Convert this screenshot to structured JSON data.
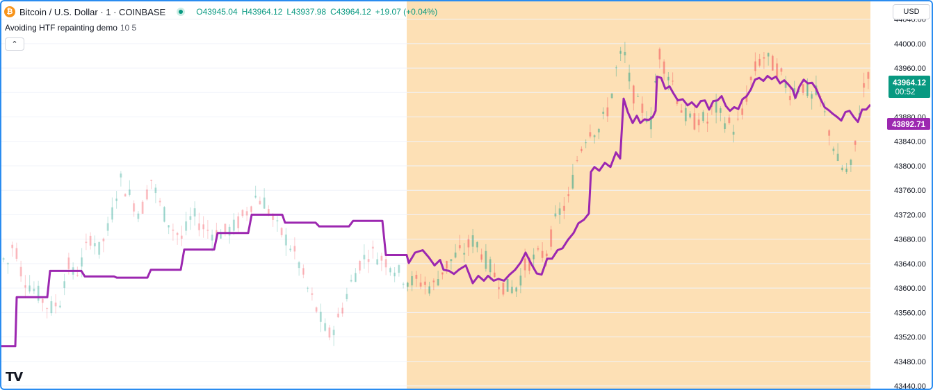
{
  "header": {
    "symbol_title": "Bitcoin / U.S. Dollar · 1 · COINBASE",
    "open": "O43945.04",
    "high": "H43964.12",
    "low": "L43937.98",
    "close": "C43964.12",
    "change": "+19.07 (+0.04%)",
    "currency": "USD",
    "coin_icon": "bitcoin-icon",
    "live_indicator": "market-open-dot"
  },
  "indicator": {
    "name": "Avoiding HTF repainting demo",
    "params": "10 5",
    "collapse_icon": "chevron-up-icon"
  },
  "colors": {
    "up": "#089981",
    "down": "#f23645",
    "line": "#9c27b0",
    "highlight_bg": "#fde0b5",
    "last_price_label": "#089981",
    "line_label": "#9c27b0"
  },
  "chart_data": {
    "type": "candlestick",
    "ylim": [
      43440,
      44060
    ],
    "y_ticks": [
      "44040.00",
      "44000.00",
      "43960.00",
      "43920.00",
      "43880.00",
      "43840.00",
      "43800.00",
      "43760.00",
      "43720.00",
      "43680.00",
      "43640.00",
      "43600.00",
      "43560.00",
      "43520.00",
      "43480.00",
      "43440.00"
    ],
    "last_price_label": "43964.12",
    "countdown_label": "00:52",
    "line_value_label": "43892.71",
    "highlight_start_fraction": 0.47,
    "candle_count": 200,
    "price_path": [
      [
        0,
        43650
      ],
      [
        10,
        43640
      ],
      [
        18,
        43680
      ],
      [
        30,
        43620
      ],
      [
        45,
        43600
      ],
      [
        60,
        43580
      ],
      [
        70,
        43565
      ],
      [
        85,
        43580
      ],
      [
        95,
        43640
      ],
      [
        105,
        43620
      ],
      [
        115,
        43640
      ],
      [
        130,
        43690
      ],
      [
        140,
        43660
      ],
      [
        155,
        43700
      ],
      [
        170,
        43780
      ],
      [
        185,
        43750
      ],
      [
        200,
        43720
      ],
      [
        215,
        43780
      ],
      [
        230,
        43730
      ],
      [
        245,
        43700
      ],
      [
        260,
        43680
      ],
      [
        275,
        43720
      ],
      [
        290,
        43700
      ],
      [
        305,
        43690
      ],
      [
        320,
        43690
      ],
      [
        335,
        43700
      ],
      [
        350,
        43720
      ],
      [
        365,
        43750
      ],
      [
        380,
        43740
      ],
      [
        395,
        43700
      ],
      [
        410,
        43680
      ],
      [
        425,
        43650
      ],
      [
        440,
        43600
      ],
      [
        455,
        43560
      ],
      [
        470,
        43520
      ],
      [
        485,
        43550
      ],
      [
        500,
        43600
      ],
      [
        515,
        43640
      ],
      [
        530,
        43660
      ],
      [
        545,
        43650
      ],
      [
        560,
        43640
      ],
      [
        575,
        43620
      ],
      [
        590,
        43610
      ],
      [
        605,
        43610
      ],
      [
        620,
        43600
      ],
      [
        635,
        43630
      ],
      [
        650,
        43650
      ],
      [
        665,
        43660
      ],
      [
        680,
        43680
      ],
      [
        695,
        43650
      ],
      [
        710,
        43620
      ],
      [
        725,
        43600
      ],
      [
        740,
        43600
      ],
      [
        755,
        43640
      ],
      [
        770,
        43650
      ],
      [
        785,
        43660
      ],
      [
        800,
        43720
      ],
      [
        815,
        43740
      ],
      [
        830,
        43820
      ],
      [
        845,
        43860
      ],
      [
        860,
        43860
      ],
      [
        875,
        43900
      ],
      [
        885,
        43960
      ],
      [
        895,
        43990
      ],
      [
        905,
        43930
      ],
      [
        915,
        43900
      ],
      [
        925,
        43890
      ],
      [
        935,
        43870
      ],
      [
        945,
        43990
      ],
      [
        955,
        43960
      ],
      [
        965,
        43940
      ],
      [
        975,
        43900
      ],
      [
        985,
        43880
      ],
      [
        995,
        43870
      ],
      [
        1005,
        43880
      ],
      [
        1015,
        43870
      ],
      [
        1025,
        43900
      ],
      [
        1035,
        43880
      ],
      [
        1045,
        43870
      ],
      [
        1055,
        43860
      ],
      [
        1065,
        43880
      ],
      [
        1075,
        43930
      ],
      [
        1085,
        43960
      ],
      [
        1095,
        43980
      ],
      [
        1105,
        43970
      ],
      [
        1115,
        43960
      ],
      [
        1125,
        43940
      ],
      [
        1135,
        43920
      ],
      [
        1145,
        43930
      ],
      [
        1155,
        43930
      ],
      [
        1165,
        43910
      ],
      [
        1175,
        43920
      ],
      [
        1185,
        43880
      ],
      [
        1195,
        43840
      ],
      [
        1205,
        43800
      ],
      [
        1215,
        43790
      ],
      [
        1225,
        43800
      ],
      [
        1235,
        43900
      ],
      [
        1245,
        43950
      ],
      [
        1250,
        43964
      ]
    ],
    "series": [
      {
        "name": "Avoiding HTF repainting demo",
        "points": [
          [
            0,
            43505
          ],
          [
            20,
            43505
          ],
          [
            22,
            43585
          ],
          [
            66,
            43585
          ],
          [
            70,
            43628
          ],
          [
            115,
            43628
          ],
          [
            120,
            43619
          ],
          [
            162,
            43619
          ],
          [
            166,
            43617
          ],
          [
            210,
            43617
          ],
          [
            215,
            43630
          ],
          [
            258,
            43630
          ],
          [
            263,
            43663
          ],
          [
            306,
            43663
          ],
          [
            311,
            43690
          ],
          [
            355,
            43690
          ],
          [
            360,
            43720
          ],
          [
            404,
            43720
          ],
          [
            408,
            43707
          ],
          [
            452,
            43707
          ],
          [
            457,
            43701
          ],
          [
            500,
            43701
          ],
          [
            506,
            43710
          ],
          [
            548,
            43710
          ],
          [
            553,
            43654
          ],
          [
            583,
            43654
          ],
          [
            586,
            43641
          ],
          [
            595,
            43658
          ],
          [
            606,
            43662
          ],
          [
            615,
            43650
          ],
          [
            623,
            43637
          ],
          [
            631,
            43646
          ],
          [
            636,
            43630
          ],
          [
            644,
            43628
          ],
          [
            651,
            43623
          ],
          [
            658,
            43630
          ],
          [
            668,
            43637
          ],
          [
            678,
            43608
          ],
          [
            686,
            43620
          ],
          [
            694,
            43612
          ],
          [
            700,
            43620
          ],
          [
            708,
            43612
          ],
          [
            715,
            43615
          ],
          [
            723,
            43612
          ],
          [
            731,
            43622
          ],
          [
            739,
            43630
          ],
          [
            747,
            43642
          ],
          [
            754,
            43658
          ],
          [
            762,
            43640
          ],
          [
            770,
            43624
          ],
          [
            777,
            43622
          ],
          [
            785,
            43648
          ],
          [
            792,
            43648
          ],
          [
            800,
            43662
          ],
          [
            807,
            43665
          ],
          [
            815,
            43679
          ],
          [
            823,
            43690
          ],
          [
            830,
            43706
          ],
          [
            838,
            43712
          ],
          [
            845,
            43722
          ],
          [
            848,
            43790
          ],
          [
            853,
            43798
          ],
          [
            860,
            43792
          ],
          [
            868,
            43805
          ],
          [
            876,
            43798
          ],
          [
            884,
            43822
          ],
          [
            890,
            43812
          ],
          [
            895,
            43910
          ],
          [
            901,
            43888
          ],
          [
            908,
            43870
          ],
          [
            914,
            43882
          ],
          [
            919,
            43870
          ],
          [
            925,
            43876
          ],
          [
            931,
            43875
          ],
          [
            937,
            43880
          ],
          [
            941,
            43890
          ],
          [
            943,
            43946
          ],
          [
            949,
            43944
          ],
          [
            955,
            43926
          ],
          [
            961,
            43930
          ],
          [
            967,
            43918
          ],
          [
            973,
            43907
          ],
          [
            980,
            43909
          ],
          [
            987,
            43899
          ],
          [
            993,
            43904
          ],
          [
            1000,
            43896
          ],
          [
            1006,
            43906
          ],
          [
            1012,
            43907
          ],
          [
            1018,
            43892
          ],
          [
            1024,
            43906
          ],
          [
            1030,
            43907
          ],
          [
            1036,
            43914
          ],
          [
            1042,
            43898
          ],
          [
            1048,
            43890
          ],
          [
            1054,
            43896
          ],
          [
            1060,
            43893
          ],
          [
            1066,
            43909
          ],
          [
            1072,
            43914
          ],
          [
            1078,
            43925
          ],
          [
            1084,
            43941
          ],
          [
            1090,
            43944
          ],
          [
            1096,
            43939
          ],
          [
            1102,
            43947
          ],
          [
            1108,
            43942
          ],
          [
            1114,
            43946
          ],
          [
            1120,
            43935
          ],
          [
            1126,
            43940
          ],
          [
            1132,
            43933
          ],
          [
            1138,
            43925
          ],
          [
            1142,
            43911
          ],
          [
            1148,
            43930
          ],
          [
            1154,
            43941
          ],
          [
            1160,
            43935
          ],
          [
            1166,
            43936
          ],
          [
            1172,
            43926
          ],
          [
            1178,
            43910
          ],
          [
            1184,
            43896
          ],
          [
            1190,
            43891
          ],
          [
            1196,
            43885
          ],
          [
            1202,
            43880
          ],
          [
            1208,
            43874
          ],
          [
            1214,
            43888
          ],
          [
            1220,
            43890
          ],
          [
            1226,
            43880
          ],
          [
            1232,
            43872
          ],
          [
            1238,
            43892
          ],
          [
            1244,
            43892
          ],
          [
            1250,
            43900
          ]
        ]
      }
    ]
  }
}
